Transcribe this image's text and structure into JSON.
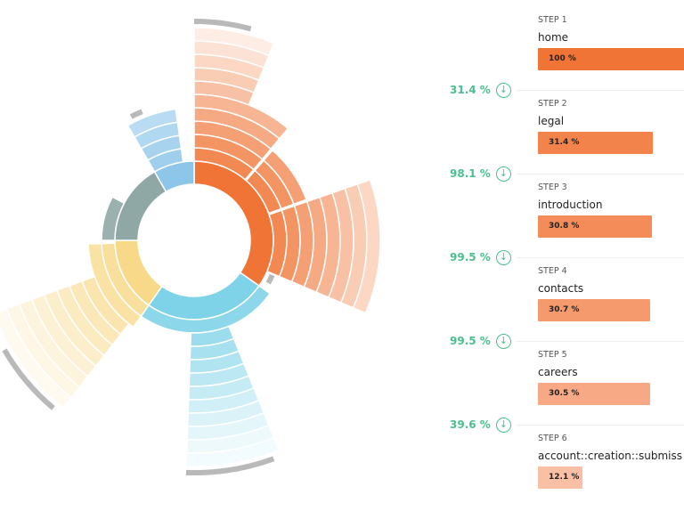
{
  "chart_data": {
    "type": "sunburst",
    "colors": {
      "orange": "#f07435",
      "cyan": "#7fd3e8",
      "yellow": "#f8d98a",
      "slate": "#8fa8a6",
      "blue": "#8ec6ea",
      "exit": "#b9b9b9"
    },
    "note_units": "angles in degrees of the full circle (share of sessions), levels = step depth",
    "arcs": [
      {
        "color": "orange",
        "a0": 0,
        "a1": 125,
        "l0": 1,
        "l1": 1
      },
      {
        "color": "cyan",
        "a0": 125,
        "a1": 215,
        "l0": 1,
        "l1": 1
      },
      {
        "color": "yellow",
        "a0": 215,
        "a1": 270,
        "l0": 1,
        "l1": 1
      },
      {
        "color": "slate",
        "a0": 270,
        "a1": 330,
        "l0": 1,
        "l1": 1
      },
      {
        "color": "blue",
        "a0": 330,
        "a1": 360,
        "l0": 1,
        "l1": 1
      },
      {
        "color": "orange",
        "a0": 0,
        "a1": 40,
        "l0": 2,
        "l1": 6,
        "fade": true
      },
      {
        "color": "orange",
        "a0": 0,
        "a1": 22,
        "l0": 7,
        "l1": 11,
        "fade": true
      },
      {
        "color": "exit",
        "a0": 0,
        "a1": 15,
        "l0": 12,
        "l1": 12
      },
      {
        "color": "orange",
        "a0": 41,
        "a1": 70,
        "l0": 2,
        "l1": 4,
        "fade": true
      },
      {
        "color": "orange",
        "a0": 71,
        "a1": 113,
        "l0": 2,
        "l1": 9,
        "fade": true
      },
      {
        "color": "exit",
        "a0": 114,
        "a1": 120,
        "l0": 2,
        "l1": 2
      },
      {
        "color": "cyan",
        "a0": 125,
        "a1": 215,
        "l0": 2,
        "l1": 2
      },
      {
        "color": "cyan",
        "a0": 158,
        "a1": 182,
        "l0": 3,
        "l1": 12,
        "fade": true
      },
      {
        "color": "exit",
        "a0": 160,
        "a1": 182,
        "l0": 13,
        "l1": 13
      },
      {
        "color": "yellow",
        "a0": 215,
        "a1": 268,
        "l0": 2,
        "l1": 3,
        "fade": true
      },
      {
        "color": "yellow",
        "a0": 218,
        "a1": 250,
        "l0": 4,
        "l1": 11,
        "fade": true
      },
      {
        "color": "exit",
        "a0": 220,
        "a1": 240,
        "l0": 12,
        "l1": 12
      },
      {
        "color": "slate",
        "a0": 270,
        "a1": 298,
        "l0": 2,
        "l1": 2
      },
      {
        "color": "blue",
        "a0": 330,
        "a1": 352,
        "l0": 2,
        "l1": 5,
        "fade": true
      },
      {
        "color": "exit",
        "a0": 333,
        "a1": 338,
        "l0": 6,
        "l1": 6
      }
    ]
  },
  "steps": [
    {
      "label": "STEP 1",
      "name": "home",
      "value": "100 %",
      "pct": 100,
      "color": "#f07435"
    },
    {
      "label": "STEP 2",
      "name": "legal",
      "value": "31.4 %",
      "pct": 78,
      "color": "#f2834a"
    },
    {
      "label": "STEP 3",
      "name": "introduction",
      "value": "30.8 %",
      "pct": 77,
      "color": "#f38c58"
    },
    {
      "label": "STEP 4",
      "name": "contacts",
      "value": "30.7 %",
      "pct": 76,
      "color": "#f59a6c"
    },
    {
      "label": "STEP 5",
      "name": "careers",
      "value": "30.5 %",
      "pct": 76,
      "color": "#f7a985"
    },
    {
      "label": "STEP 6",
      "name": "account::creation::submiss",
      "value": "12.1 %",
      "pct": 30,
      "color": "#f9c0a6"
    }
  ],
  "drops": [
    "31.4 %",
    "98.1 %",
    "99.5 %",
    "99.5 %",
    "39.6 %"
  ]
}
